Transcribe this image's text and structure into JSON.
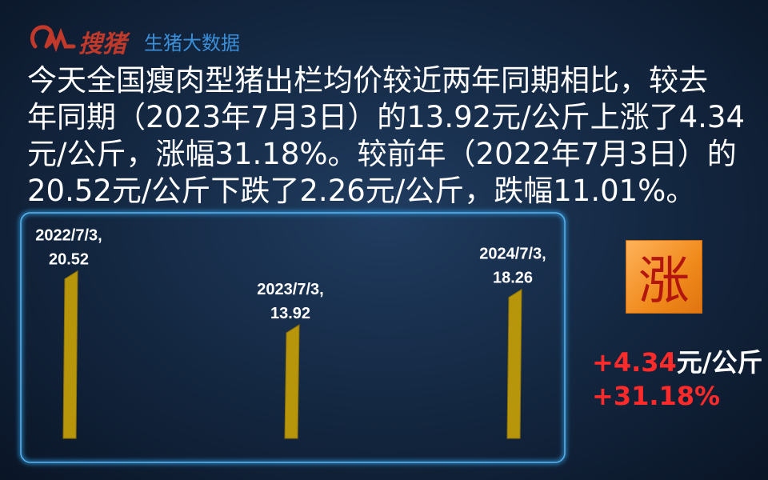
{
  "header": {
    "brand": "搜猪",
    "subtitle": "生猪大数据"
  },
  "paragraph": [
    "今天全国瘦肉型猪出栏均价较近两年同期相比，较去",
    "年同期（2023年7月3日）的13.92元/公斤上涨了4.34",
    "元/公斤，涨幅31.18%。较前年（2022年7月3日）的",
    "20.52元/公斤下跌了2.26元/公斤，跌幅11.01%。"
  ],
  "chart_data": {
    "type": "bar",
    "categories": [
      "2022/7/3,",
      "2023/7/3,",
      "2024/7/3,"
    ],
    "values": [
      20.52,
      13.92,
      18.26
    ],
    "color": "#b8960c"
  },
  "side": {
    "badge": "涨",
    "change": "+4.34",
    "unit": "元/公斤",
    "percent": "+31.18%"
  }
}
